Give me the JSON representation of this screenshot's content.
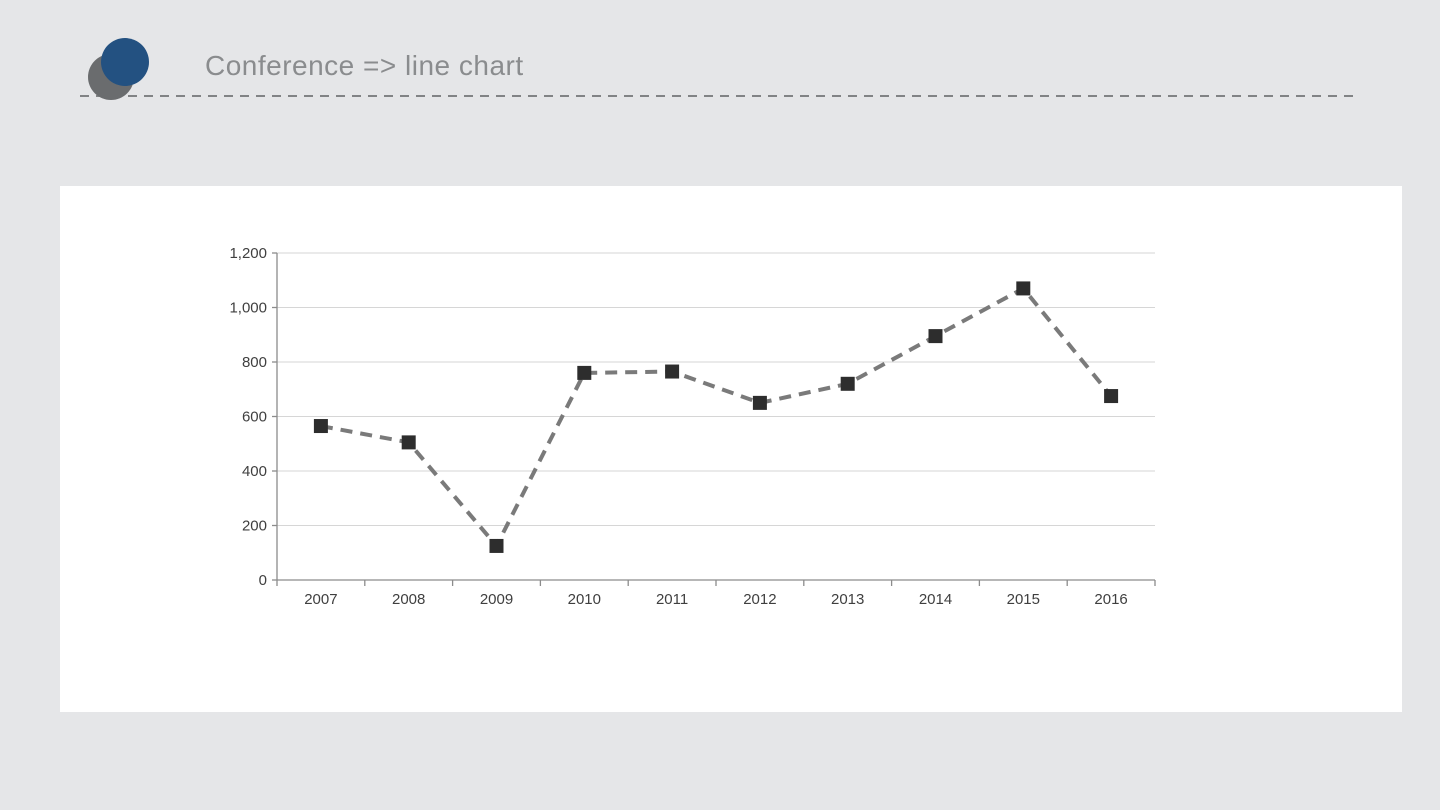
{
  "header": {
    "title": "Conference => line chart",
    "logo": {
      "blue_circle_color": "#235181",
      "gray_circle_color": "#6a6c6e"
    },
    "divider_color": "#818385"
  },
  "page": {
    "background_color": "#e5e6e8",
    "panel_color": "#ffffff"
  },
  "chart_data": {
    "type": "line",
    "title": "",
    "xlabel": "",
    "ylabel": "",
    "categories": [
      "2007",
      "2008",
      "2009",
      "2010",
      "2011",
      "2012",
      "2013",
      "2014",
      "2015",
      "2016"
    ],
    "values": [
      565,
      505,
      125,
      760,
      765,
      650,
      720,
      895,
      1070,
      675
    ],
    "ylim": [
      0,
      1200
    ],
    "ytick_step": 200,
    "ytick_labels": [
      "0",
      "200",
      "400",
      "600",
      "800",
      "1,000",
      "1,200"
    ],
    "grid": true,
    "legend": "none",
    "line_style": "dashed",
    "marker": "square",
    "colors": {
      "line": "#7a7a7a",
      "marker": "#2d2d2d",
      "gridline": "#d6d6d6",
      "axis": "#8c8c8c",
      "tick_label": "#3f3f3f"
    }
  }
}
